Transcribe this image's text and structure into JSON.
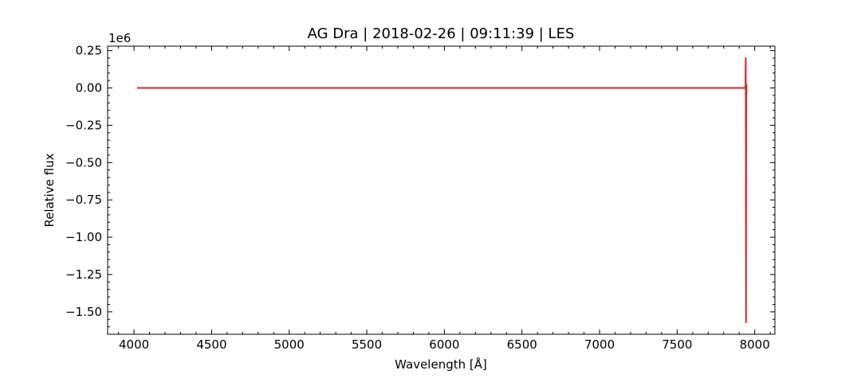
{
  "chart_data": {
    "type": "line",
    "title": "AG Dra | 2018-02-26 | 09:11:39 | LES",
    "xlabel": "Wavelength [Å]",
    "ylabel": "Relative flux",
    "y_offset_label": "1e6",
    "xlim": [
      3830,
      8130
    ],
    "ylim": [
      -1.65,
      0.28
    ],
    "x_ticks": [
      4000,
      4500,
      5000,
      5500,
      6000,
      6500,
      7000,
      7500,
      8000
    ],
    "x_tick_labels": [
      "4000",
      "4500",
      "5000",
      "5500",
      "6000",
      "6500",
      "7000",
      "7500",
      "8000"
    ],
    "y_ticks": [
      0.25,
      0.0,
      -0.25,
      -0.5,
      -0.75,
      -1.0,
      -1.25,
      -1.5
    ],
    "y_tick_labels": [
      "0.25",
      "0.00",
      "−0.25",
      "−0.50",
      "−0.75",
      "−1.00",
      "−1.25",
      "−1.50"
    ],
    "grid": false,
    "series": [
      {
        "color": "#d62728",
        "x": [
          4020,
          7900,
          7940,
          7942,
          7944,
          7945,
          7946,
          7947,
          7948,
          7950
        ],
        "y": [
          0.0,
          0.0,
          0.0,
          0.2,
          -1.57,
          0.0,
          -0.05,
          0.02,
          0.0,
          0.0
        ]
      }
    ]
  }
}
